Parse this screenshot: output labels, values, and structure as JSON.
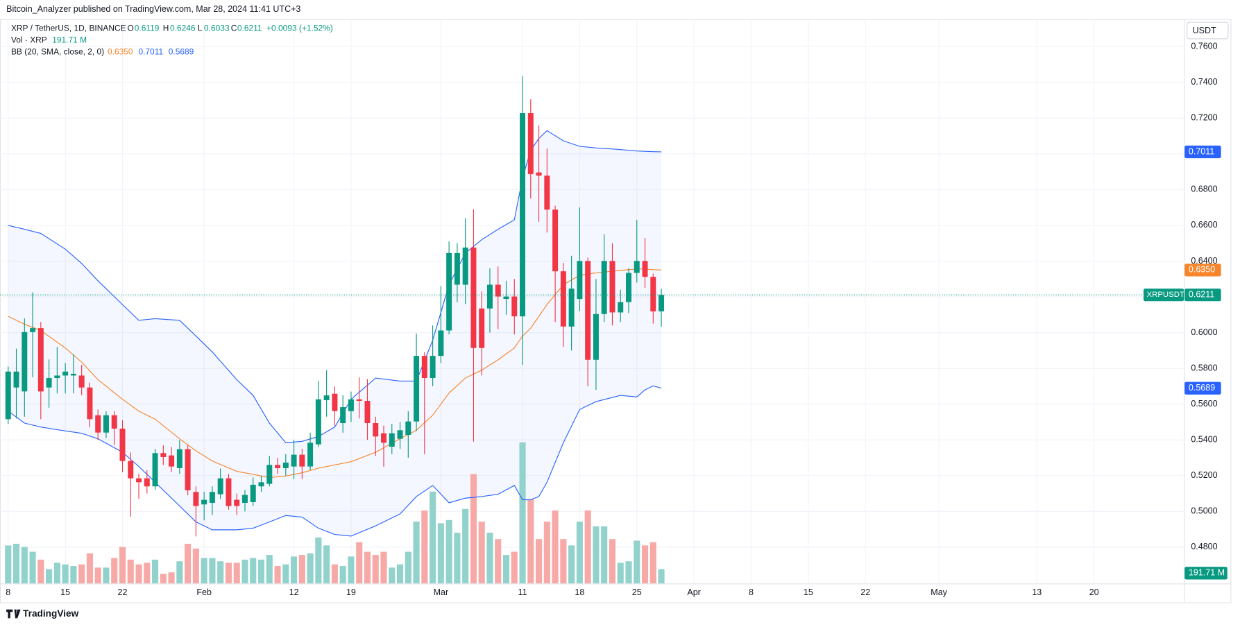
{
  "header": "Bitcoin_Analyzer published on TradingView.com, Mar 28, 2024 11:41 UTC+3",
  "brand": "TradingView",
  "chart_data": {
    "type": "candlestick",
    "symbol": "XRP / TetherUS, 1D, BINANCE",
    "ohlc_keys": [
      "O",
      "H",
      "L",
      "C"
    ],
    "change": "+0.0093 (+1.52%)",
    "currency": "USDT",
    "ticker": "XRPUSDT",
    "up_color": "#089981",
    "down_color": "#f23645",
    "grid": true,
    "x": [
      "2024-01-08",
      "2024-01-09",
      "2024-01-10",
      "2024-01-11",
      "2024-01-12",
      "2024-01-13",
      "2024-01-14",
      "2024-01-15",
      "2024-01-16",
      "2024-01-17",
      "2024-01-18",
      "2024-01-19",
      "2024-01-20",
      "2024-01-21",
      "2024-01-22",
      "2024-01-23",
      "2024-01-24",
      "2024-01-25",
      "2024-01-26",
      "2024-01-27",
      "2024-01-28",
      "2024-01-29",
      "2024-01-30",
      "2024-01-31",
      "2024-02-01",
      "2024-02-02",
      "2024-02-03",
      "2024-02-04",
      "2024-02-05",
      "2024-02-06",
      "2024-02-07",
      "2024-02-08",
      "2024-02-09",
      "2024-02-10",
      "2024-02-11",
      "2024-02-12",
      "2024-02-13",
      "2024-02-14",
      "2024-02-15",
      "2024-02-16",
      "2024-02-17",
      "2024-02-18",
      "2024-02-19",
      "2024-02-20",
      "2024-02-21",
      "2024-02-22",
      "2024-02-23",
      "2024-02-24",
      "2024-02-25",
      "2024-02-26",
      "2024-02-27",
      "2024-02-28",
      "2024-02-29",
      "2024-03-01",
      "2024-03-02",
      "2024-03-03",
      "2024-03-04",
      "2024-03-05",
      "2024-03-06",
      "2024-03-07",
      "2024-03-08",
      "2024-03-09",
      "2024-03-10",
      "2024-03-11",
      "2024-03-12",
      "2024-03-13",
      "2024-03-14",
      "2024-03-15",
      "2024-03-16",
      "2024-03-17",
      "2024-03-18",
      "2024-03-19",
      "2024-03-20",
      "2024-03-21",
      "2024-03-22",
      "2024-03-23",
      "2024-03-24",
      "2024-03-25",
      "2024-03-26",
      "2024-03-27",
      "2024-03-28"
    ],
    "open": [
      0.5516,
      0.5693,
      0.5671,
      0.6003,
      0.6025,
      0.5693,
      0.5746,
      0.576,
      0.576,
      0.576,
      0.5693,
      0.5538,
      0.5441,
      0.5538,
      0.5463,
      0.5282,
      0.5185,
      0.5185,
      0.514,
      0.5326,
      0.5313,
      0.5242,
      0.5348,
      0.5109,
      0.5039,
      0.5048,
      0.5096,
      0.5185,
      0.5065,
      0.5048,
      0.5052,
      0.514,
      0.5154,
      0.526,
      0.5242,
      0.5251,
      0.5317,
      0.5251,
      0.5375,
      0.5622,
      0.5658,
      0.5494,
      0.5561,
      0.5627,
      0.5618,
      0.5494,
      0.5437,
      0.5362,
      0.5406,
      0.5428,
      0.5503,
      0.587,
      0.5746,
      0.587,
      0.6012,
      0.6268,
      0.6268,
      0.6476,
      0.6135,
      0.6135,
      0.6268,
      0.6188,
      0.6202,
      0.6091,
      0.7228,
      0.6896,
      0.6878,
      0.6688,
      0.6343,
      0.6034,
      0.6188,
      0.6401,
      0.5848,
      0.6104,
      0.6401,
      0.6113,
      0.6171,
      0.6334,
      0.6401,
      0.6312,
      0.6119
    ],
    "high": [
      0.581,
      0.591,
      0.608,
      0.6225,
      0.606,
      0.585,
      0.592,
      0.583,
      0.588,
      0.582,
      0.572,
      0.557,
      0.556,
      0.556,
      0.551,
      0.533,
      0.521,
      0.523,
      0.535,
      0.537,
      0.536,
      0.54,
      0.537,
      0.514,
      0.511,
      0.514,
      0.524,
      0.521,
      0.51,
      0.512,
      0.519,
      0.52,
      0.531,
      0.53,
      0.532,
      0.54,
      0.535,
      0.544,
      0.573,
      0.579,
      0.57,
      0.565,
      0.567,
      0.575,
      0.574,
      0.553,
      0.548,
      0.549,
      0.55,
      0.556,
      0.5995,
      0.589,
      0.604,
      0.626,
      0.651,
      0.65,
      0.664,
      0.669,
      0.623,
      0.636,
      0.637,
      0.629,
      0.63,
      0.7435,
      0.7305,
      0.716,
      0.703,
      0.671,
      0.639,
      0.643,
      0.67,
      0.642,
      0.63,
      0.655,
      0.65,
      0.624,
      0.636,
      0.663,
      0.653,
      0.633,
      0.6246
    ],
    "low": [
      0.549,
      0.552,
      0.553,
      0.575,
      0.5516,
      0.558,
      0.566,
      0.566,
      0.566,
      0.565,
      0.547,
      0.54,
      0.541,
      0.537,
      0.522,
      0.497,
      0.507,
      0.51,
      0.512,
      0.526,
      0.522,
      0.521,
      0.509,
      0.486,
      0.495,
      0.498,
      0.507,
      0.501,
      0.498,
      0.5,
      0.503,
      0.511,
      0.514,
      0.521,
      0.52,
      0.518,
      0.518,
      0.523,
      0.536,
      0.553,
      0.548,
      0.544,
      0.55,
      0.552,
      0.54,
      0.531,
      0.525,
      0.532,
      0.535,
      0.53,
      0.545,
      0.532,
      0.57,
      0.583,
      0.599,
      0.617,
      0.616,
      0.539,
      0.576,
      0.6,
      0.602,
      0.61,
      0.599,
      0.582,
      0.675,
      0.662,
      0.656,
      0.606,
      0.592,
      0.59,
      0.612,
      0.57,
      0.568,
      0.606,
      0.604,
      0.606,
      0.611,
      0.628,
      0.625,
      0.605,
      0.6033
    ],
    "close": [
      0.5782,
      0.5782,
      0.6003,
      0.6025,
      0.5671,
      0.5746,
      0.576,
      0.5782,
      0.577,
      0.5693,
      0.5516,
      0.5441,
      0.5538,
      0.5463,
      0.5282,
      0.5185,
      0.5163,
      0.514,
      0.5326,
      0.5304,
      0.5251,
      0.5348,
      0.5118,
      0.503,
      0.5065,
      0.5109,
      0.5185,
      0.503,
      0.503,
      0.5092,
      0.5149,
      0.5163,
      0.526,
      0.5242,
      0.5273,
      0.5317,
      0.5251,
      0.5384,
      0.5627,
      0.5649,
      0.5561,
      0.5583,
      0.5627,
      0.5618,
      0.5494,
      0.5419,
      0.5384,
      0.5437,
      0.5454,
      0.5503,
      0.587,
      0.5746,
      0.587,
      0.6012,
      0.6445,
      0.6445,
      0.6476,
      0.5914,
      0.5914,
      0.6268,
      0.6202,
      0.6202,
      0.6091,
      0.7228,
      0.6887,
      0.6878,
      0.6688,
      0.6343,
      0.6034,
      0.6246,
      0.6401,
      0.5848,
      0.6104,
      0.6401,
      0.6113,
      0.6171,
      0.6334,
      0.6401,
      0.6312,
      0.6119,
      0.6211
    ],
    "volume": {
      "name": "Vol · XRP",
      "up_color": "#92d2cc",
      "down_color": "#f7a9a7",
      "values": [
        511,
        533,
        490,
        426,
        320,
        192,
        277,
        256,
        234,
        256,
        405,
        213,
        213,
        341,
        490,
        320,
        256,
        277,
        320,
        128,
        149,
        298,
        533,
        469,
        341,
        341,
        298,
        277,
        277,
        320,
        341,
        320,
        383,
        234,
        256,
        362,
        383,
        405,
        618,
        511,
        256,
        234,
        362,
        554,
        426,
        383,
        426,
        213,
        256,
        426,
        831,
        980,
        1235,
        809,
        852,
        682,
        1001,
        1470,
        831,
        682,
        596,
        383,
        426,
        1896,
        1129,
        596,
        831,
        980,
        596,
        511,
        831,
        980,
        767,
        767,
        596,
        277,
        298,
        575,
        511,
        554,
        191.71
      ],
      "value_labels": [
        null,
        null,
        null,
        null,
        null,
        null,
        null,
        null,
        null,
        null,
        null,
        null,
        null,
        null,
        null,
        null,
        null,
        null,
        null,
        null,
        null,
        null,
        null,
        null,
        null,
        null,
        null,
        null,
        null,
        null,
        null,
        null,
        null,
        null,
        null,
        null,
        null,
        null,
        null,
        null,
        null,
        null,
        null,
        null,
        null,
        null,
        null,
        null,
        null,
        null,
        null,
        null,
        null,
        null,
        null,
        null,
        null,
        null,
        null,
        null,
        null,
        null,
        null,
        null,
        null,
        null,
        null,
        null,
        null,
        null,
        null,
        null,
        null,
        null,
        null,
        null,
        null,
        null,
        null,
        null,
        "191.71 M"
      ]
    },
    "bb": {
      "name": "BB (20, SMA, close, 2, 0)",
      "x": [
        "2024-01-08",
        "2024-01-10",
        "2024-01-12",
        "2024-01-15",
        "2024-01-17",
        "2024-01-19",
        "2024-01-22",
        "2024-01-24",
        "2024-01-26",
        "2024-01-29",
        "2024-01-31",
        "2024-02-02",
        "2024-02-05",
        "2024-02-07",
        "2024-02-09",
        "2024-02-11",
        "2024-02-13",
        "2024-02-15",
        "2024-02-17",
        "2024-02-19",
        "2024-02-22",
        "2024-02-25",
        "2024-02-27",
        "2024-02-29",
        "2024-03-02",
        "2024-03-04",
        "2024-03-06",
        "2024-03-08",
        "2024-03-10",
        "2024-03-11",
        "2024-03-12",
        "2024-03-13",
        "2024-03-14",
        "2024-03-16",
        "2024-03-18",
        "2024-03-20",
        "2024-03-23",
        "2024-03-25",
        "2024-03-26",
        "2024-03-27",
        "2024-03-28"
      ],
      "series": [
        {
          "color": "#2962ff",
          "values": [
            0.66,
            0.6578,
            0.6555,
            0.6467,
            0.6387,
            0.629,
            0.6157,
            0.6069,
            0.6078,
            0.6069,
            0.5981,
            0.5892,
            0.5737,
            0.5649,
            0.5494,
            0.5384,
            0.5392,
            0.5419,
            0.5472,
            0.5627,
            0.5746,
            0.5729,
            0.5729,
            0.5958,
            0.6268,
            0.6445,
            0.652,
            0.6578,
            0.6631,
            0.6865,
            0.702,
            0.7086,
            0.713,
            0.7073,
            0.7042,
            0.7033,
            0.7024,
            0.7016,
            0.7014,
            0.7012,
            0.7011
          ]
        },
        {
          "color": "#f7852b",
          "values": [
            0.6091,
            0.6047,
            0.6012,
            0.5914,
            0.5835,
            0.5737,
            0.5627,
            0.5561,
            0.5516,
            0.5406,
            0.5339,
            0.5282,
            0.5224,
            0.5207,
            0.5189,
            0.5198,
            0.5216,
            0.5242,
            0.526,
            0.5278,
            0.5331,
            0.5406,
            0.5454,
            0.5538,
            0.5662,
            0.5746,
            0.579,
            0.5848,
            0.5914,
            0.5981,
            0.6025,
            0.6091,
            0.6157,
            0.6268,
            0.6321,
            0.6334,
            0.6348,
            0.6356,
            0.6356,
            0.6352,
            0.635
          ],
          "value_labels": [
            null,
            null,
            null,
            null,
            null,
            null,
            null,
            null,
            null,
            null,
            null,
            null,
            null,
            null,
            null,
            null,
            null,
            null,
            null,
            null,
            null,
            null,
            null,
            null,
            null,
            null,
            null,
            null,
            null,
            null,
            null,
            null,
            null,
            null,
            null,
            null,
            null,
            null,
            null,
            null,
            "0.6350"
          ]
        },
        {
          "color": "#2962ff",
          "values": [
            0.5561,
            0.5494,
            0.5472,
            0.545,
            0.5437,
            0.5406,
            0.5331,
            0.5251,
            0.5163,
            0.503,
            0.4941,
            0.4897,
            0.4897,
            0.4906,
            0.4941,
            0.4977,
            0.4968,
            0.4906,
            0.4871,
            0.4862,
            0.4919,
            0.4986,
            0.5083,
            0.5145,
            0.5048,
            0.5074,
            0.5083,
            0.5096,
            0.5145,
            0.5065,
            0.5065,
            0.5083,
            0.5163,
            0.5384,
            0.557,
            0.5614,
            0.5649,
            0.564,
            0.568,
            0.5702,
            0.5689
          ]
        }
      ],
      "fill": "#2962ff"
    },
    "xlim": [
      "2024-01-07",
      "2024-05-31"
    ],
    "xticks": [
      {
        "value": "2024-01-08",
        "label": "8"
      },
      {
        "value": "2024-01-15",
        "label": "15"
      },
      {
        "value": "2024-01-22",
        "label": "22"
      },
      {
        "value": "2024-02-01",
        "label": "Feb"
      },
      {
        "value": "2024-02-12",
        "label": "12"
      },
      {
        "value": "2024-02-19",
        "label": "19"
      },
      {
        "value": "2024-03-01",
        "label": "Mar"
      },
      {
        "value": "2024-03-11",
        "label": "11"
      },
      {
        "value": "2024-03-18",
        "label": "18"
      },
      {
        "value": "2024-03-25",
        "label": "25"
      },
      {
        "value": "2024-04-01",
        "label": "Apr"
      },
      {
        "value": "2024-04-08",
        "label": "8"
      },
      {
        "value": "2024-04-15",
        "label": "15"
      },
      {
        "value": "2024-04-22",
        "label": "22"
      },
      {
        "value": "2024-05-01",
        "label": "May"
      },
      {
        "value": "2024-05-13",
        "label": "13"
      },
      {
        "value": "2024-05-20",
        "label": "20"
      }
    ],
    "ylim": [
      0.4597,
      0.7754
    ],
    "yticks": [
      {
        "value": 0.48,
        "label": "0.4800"
      },
      {
        "value": 0.5,
        "label": "0.5000"
      },
      {
        "value": 0.52,
        "label": "0.5200"
      },
      {
        "value": 0.54,
        "label": "0.5400"
      },
      {
        "value": 0.56,
        "label": "0.5600"
      },
      {
        "value": 0.58,
        "label": "0.5800"
      },
      {
        "value": 0.6,
        "label": "0.6000"
      },
      {
        "value": 0.62,
        "label": "0.6200"
      },
      {
        "value": 0.64,
        "label": "0.6400"
      },
      {
        "value": 0.66,
        "label": "0.6600"
      },
      {
        "value": 0.68,
        "label": "0.6800"
      },
      {
        "value": 0.7,
        "label": "0.7000"
      },
      {
        "value": 0.72,
        "label": "0.7200"
      },
      {
        "value": 0.74,
        "label": "0.7400"
      },
      {
        "value": 0.76,
        "label": "0.7600"
      }
    ]
  }
}
